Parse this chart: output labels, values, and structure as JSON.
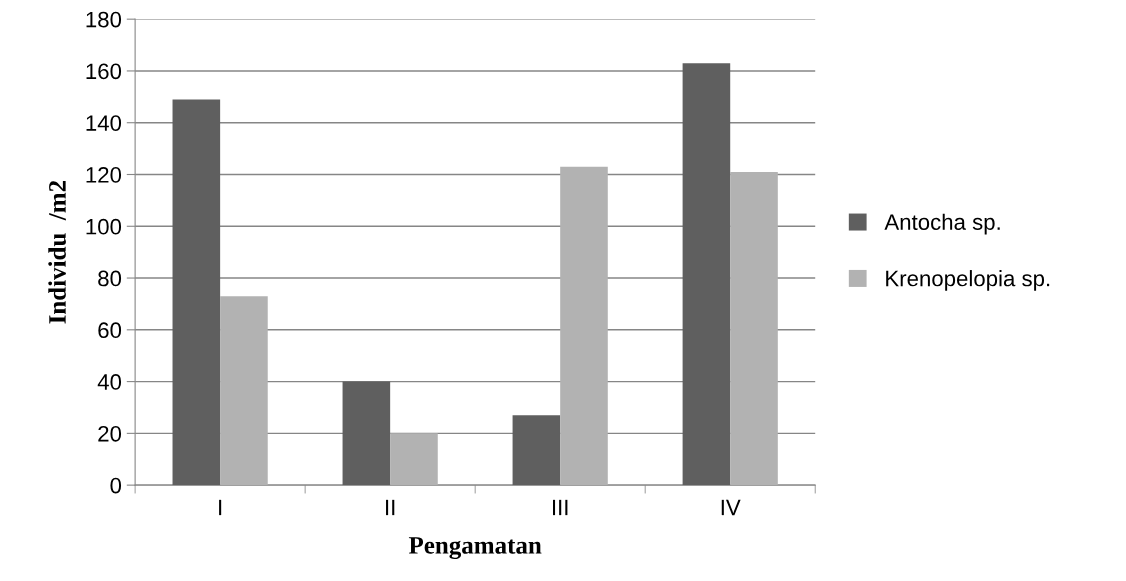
{
  "chart_data": {
    "type": "bar",
    "xlabel": "Pengamatan",
    "ylabel": "Individu  /m2",
    "categories": [
      "I",
      "II",
      "III",
      "IV"
    ],
    "series": [
      {
        "name": "Antocha sp.",
        "color": "#5f5f5f",
        "values": [
          149,
          40,
          27,
          163
        ]
      },
      {
        "name": "Krenopelopia sp.",
        "color": "#b2b2b2",
        "values": [
          73,
          20,
          123,
          121
        ]
      }
    ],
    "ylim": [
      0,
      180
    ],
    "yticks": [
      0,
      20,
      40,
      60,
      80,
      100,
      120,
      140,
      160,
      180
    ],
    "grid": "y",
    "legend": "right"
  }
}
